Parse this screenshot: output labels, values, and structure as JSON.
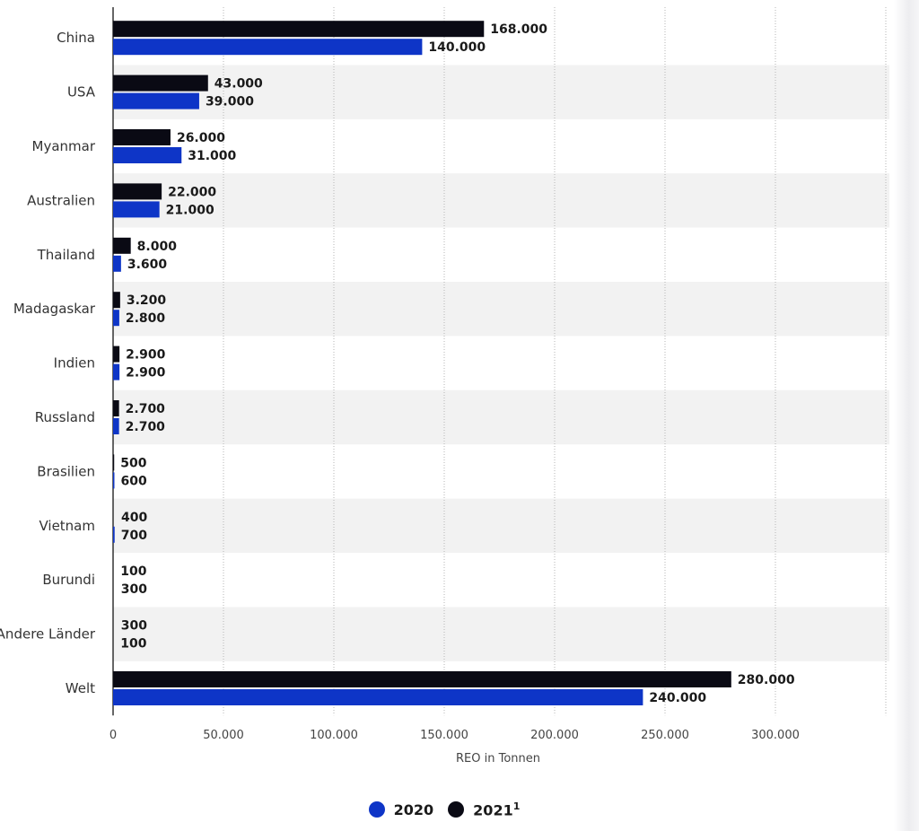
{
  "chart_data": {
    "type": "bar",
    "orientation": "horizontal",
    "categories": [
      "China",
      "USA",
      "Myanmar",
      "Australien",
      "Thailand",
      "Madagaskar",
      "Indien",
      "Russland",
      "Brasilien",
      "Vietnam",
      "Burundi",
      "Andere Länder",
      "Welt"
    ],
    "series": [
      {
        "name": "2021¹",
        "color": "#0a0a14",
        "values": [
          168000,
          43000,
          26000,
          22000,
          8000,
          3200,
          2900,
          2700,
          500,
          400,
          100,
          300,
          280000
        ],
        "labels": [
          "168.000",
          "43.000",
          "26.000",
          "22.000",
          "8.000",
          "3.200",
          "2.900",
          "2.700",
          "500",
          "400",
          "100",
          "300",
          "280.000"
        ]
      },
      {
        "name": "2020",
        "color": "#0e35c7",
        "values": [
          140000,
          39000,
          31000,
          21000,
          3600,
          2800,
          2900,
          2700,
          600,
          700,
          300,
          100,
          240000
        ],
        "labels": [
          "140.000",
          "39.000",
          "31.000",
          "21.000",
          "3.600",
          "2.800",
          "2.900",
          "2.700",
          "600",
          "700",
          "300",
          "100",
          "240.000"
        ]
      }
    ],
    "xlim": [
      0,
      350000
    ],
    "xticks": [
      0,
      50000,
      100000,
      150000,
      200000,
      250000,
      300000
    ],
    "xtick_labels": [
      "0",
      "50.000",
      "100.000",
      "150.000",
      "200.000",
      "250.000",
      "300.000"
    ],
    "xlabel": "REO in Tonnen",
    "ylabel": "",
    "grid": true,
    "legend_position": "bottom-center"
  },
  "legend": {
    "items": [
      {
        "label": "2020",
        "color": "#0e35c7"
      },
      {
        "label": "2021",
        "sup": "1",
        "color": "#0a0a14"
      }
    ]
  }
}
